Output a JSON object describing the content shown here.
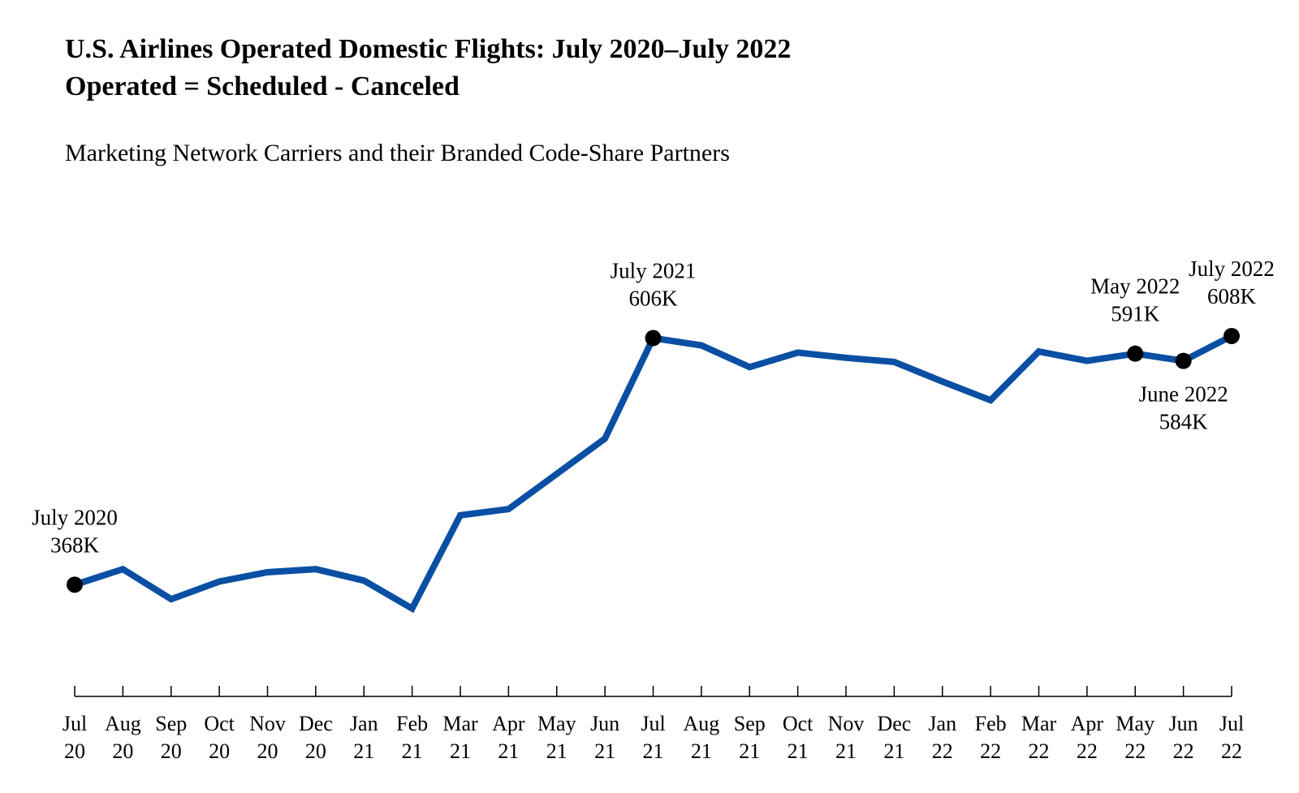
{
  "title_line1": "U.S. Airlines Operated Domestic Flights: July 2020–July 2022",
  "title_line2": "Operated = Scheduled - Canceled",
  "subtitle": "Marketing Network Carriers and their Branded Code-Share Partners",
  "chart_data": {
    "type": "line",
    "title": "U.S. Airlines Operated Domestic Flights: July 2020–July 2022",
    "subtitle": "Marketing Network Carriers and their Branded Code-Share Partners",
    "xlabel": "",
    "ylabel": "",
    "units": "thousands of flights",
    "grid": false,
    "line_color": "#0a4fa3",
    "categories": [
      [
        "Jul",
        "20"
      ],
      [
        "Aug",
        "20"
      ],
      [
        "Sep",
        "20"
      ],
      [
        "Oct",
        "20"
      ],
      [
        "Nov",
        "20"
      ],
      [
        "Dec",
        "20"
      ],
      [
        "Jan",
        "21"
      ],
      [
        "Feb",
        "21"
      ],
      [
        "Mar",
        "21"
      ],
      [
        "Apr",
        "21"
      ],
      [
        "May",
        "21"
      ],
      [
        "Jun",
        "21"
      ],
      [
        "Jul",
        "21"
      ],
      [
        "Aug",
        "21"
      ],
      [
        "Sep",
        "21"
      ],
      [
        "Oct",
        "21"
      ],
      [
        "Nov",
        "21"
      ],
      [
        "Dec",
        "21"
      ],
      [
        "Jan",
        "22"
      ],
      [
        "Feb",
        "22"
      ],
      [
        "Mar",
        "22"
      ],
      [
        "Apr",
        "22"
      ],
      [
        "May",
        "22"
      ],
      [
        "Jun",
        "22"
      ],
      [
        "Jul",
        "22"
      ]
    ],
    "series": [
      {
        "values": [
          368,
          383,
          354,
          371,
          380,
          383,
          372,
          345,
          435,
          441,
          475,
          509,
          606,
          599,
          578,
          592,
          587,
          583,
          564,
          546,
          593,
          584,
          591,
          584,
          608
        ]
      }
    ],
    "ylim": [
      250,
      720
    ],
    "annotations": [
      {
        "index": 0,
        "lines": [
          "July 2020",
          "368K"
        ],
        "position": "above"
      },
      {
        "index": 12,
        "lines": [
          "July 2021",
          "606K"
        ],
        "position": "above"
      },
      {
        "index": 22,
        "lines": [
          "May 2022",
          "591K"
        ],
        "position": "above"
      },
      {
        "index": 23,
        "lines": [
          "June 2022",
          "584K"
        ],
        "position": "below"
      },
      {
        "index": 24,
        "lines": [
          "July 2022",
          "608K"
        ],
        "position": "above"
      }
    ]
  }
}
